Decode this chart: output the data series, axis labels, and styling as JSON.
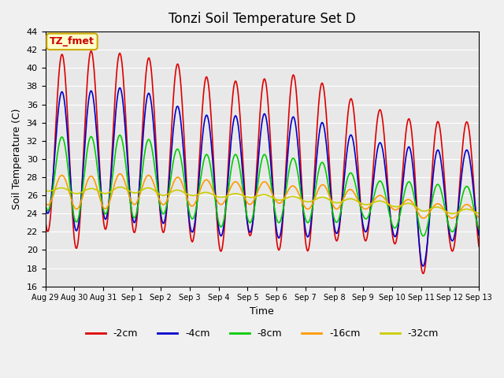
{
  "title": "Tonzi Soil Temperature Set D",
  "xlabel": "Time",
  "ylabel": "Soil Temperature (C)",
  "ylim": [
    16,
    44
  ],
  "yticks": [
    16,
    18,
    20,
    22,
    24,
    26,
    28,
    30,
    32,
    34,
    36,
    38,
    40,
    42,
    44
  ],
  "xtick_labels": [
    "Aug 29",
    "Aug 30",
    "Aug 31",
    "Sep 1",
    "Sep 2",
    "Sep 3",
    "Sep 4",
    "Sep 5",
    "Sep 6",
    "Sep 7",
    "Sep 8",
    "Sep 9",
    "Sep 10",
    "Sep 11",
    "Sep 12",
    "Sep 13"
  ],
  "series_colors": [
    "#dd0000",
    "#0000cc",
    "#00cc00",
    "#ff9900",
    "#cccc00"
  ],
  "series_labels": [
    "-2cm",
    "-4cm",
    "-8cm",
    "-16cm",
    "-32cm"
  ],
  "annotation_text": "TZ_fmet",
  "annotation_bg": "#ffffcc",
  "annotation_border": "#ccaa00",
  "background_color": "#e8e8e8",
  "n_days": 16,
  "points_per_day": 48,
  "peaks_2cm": [
    42.2,
    41.0,
    42.5,
    41.0,
    41.2,
    39.9,
    38.4,
    38.7,
    38.9,
    39.5,
    37.5,
    36.0,
    35.0,
    34.0,
    34.2,
    34.0
  ],
  "troughs_2cm": [
    22.2,
    20.0,
    22.3,
    21.9,
    22.0,
    21.0,
    19.7,
    21.7,
    20.0,
    19.8,
    21.0,
    21.0,
    21.0,
    17.2,
    19.9,
    19.5
  ],
  "peaks_4cm": [
    38.2,
    36.8,
    38.0,
    37.7,
    36.9,
    35.0,
    34.7,
    34.8,
    35.1,
    34.3,
    33.8,
    31.8,
    31.8,
    31.0,
    31.0,
    31.0
  ],
  "troughs_4cm": [
    24.2,
    22.0,
    23.4,
    23.0,
    23.0,
    22.0,
    21.5,
    22.0,
    21.3,
    21.4,
    21.8,
    22.0,
    21.8,
    18.0,
    21.0,
    21.0
  ],
  "peaks_8cm": [
    33.0,
    32.0,
    32.8,
    32.5,
    31.9,
    30.5,
    30.5,
    30.5,
    30.5,
    29.8,
    29.5,
    27.7,
    27.5,
    27.5,
    27.0,
    27.0
  ],
  "troughs_8cm": [
    24.5,
    23.0,
    24.0,
    23.5,
    24.0,
    23.5,
    22.5,
    23.0,
    23.0,
    23.0,
    23.0,
    23.5,
    22.5,
    21.5,
    22.0,
    22.0
  ],
  "peaks_16cm": [
    28.5,
    28.0,
    28.2,
    28.5,
    28.0,
    28.0,
    27.5,
    27.5,
    27.5,
    26.7,
    27.5,
    26.0,
    26.0,
    25.2,
    25.0,
    25.0
  ],
  "troughs_16cm": [
    25.0,
    24.5,
    24.5,
    25.0,
    25.0,
    24.8,
    25.0,
    25.0,
    25.2,
    24.5,
    24.5,
    24.5,
    24.5,
    23.5,
    23.5,
    23.5
  ],
  "peaks_32cm": [
    27.0,
    26.7,
    26.8,
    27.0,
    26.7,
    26.5,
    26.2,
    26.2,
    26.0,
    25.8,
    25.8,
    25.5,
    25.3,
    25.0,
    24.5,
    24.5
  ],
  "troughs_32cm": [
    26.5,
    26.2,
    26.2,
    26.3,
    26.0,
    26.0,
    25.8,
    25.8,
    25.5,
    25.3,
    25.2,
    25.0,
    24.8,
    24.3,
    24.0,
    24.0
  ]
}
